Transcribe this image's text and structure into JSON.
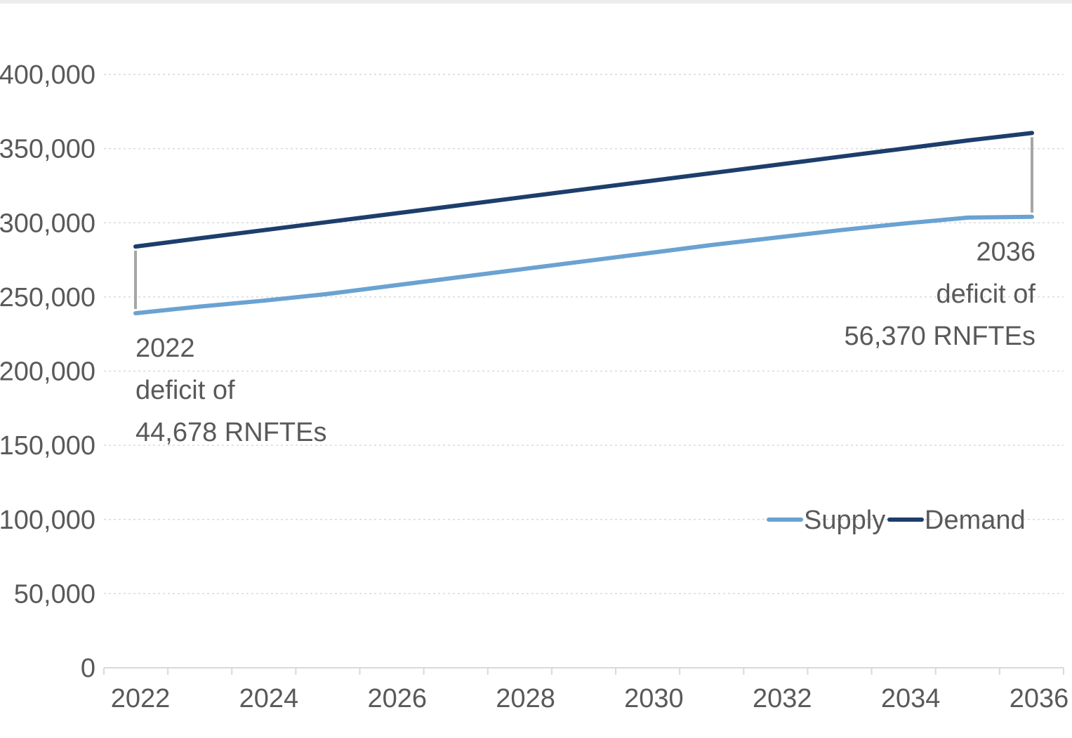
{
  "chart_data": {
    "type": "line",
    "title": "",
    "xlabel": "",
    "ylabel": "",
    "x": [
      2022,
      2023,
      2024,
      2025,
      2026,
      2027,
      2028,
      2029,
      2030,
      2031,
      2032,
      2033,
      2034,
      2035,
      2036
    ],
    "x_tick_labels": [
      "2022",
      "2024",
      "2026",
      "2028",
      "2030",
      "2032",
      "2034",
      "2036"
    ],
    "y_tick_labels": [
      "0",
      "50,000",
      "100,000",
      "150,000",
      "200,000",
      "250,000",
      "300,000",
      "350,000",
      "400,000"
    ],
    "ylim": [
      0,
      400000
    ],
    "grid": "horizontal dotted",
    "legend_position": "bottom-right",
    "series": [
      {
        "name": "Supply",
        "color": "#6aa2d2",
        "values": [
          239000,
          243500,
          247500,
          252000,
          257500,
          263000,
          268500,
          274000,
          279500,
          285000,
          290000,
          295000,
          299500,
          303500,
          304000
        ]
      },
      {
        "name": "Demand",
        "color": "#1d3e6b",
        "values": [
          284000,
          289500,
          295000,
          300500,
          306000,
          311500,
          317000,
          322500,
          328000,
          333500,
          339000,
          344500,
          350000,
          355500,
          360500
        ]
      }
    ],
    "annotations": [
      {
        "x": 2022,
        "lines": [
          "2022",
          "deficit of",
          "44,678 RNFTEs"
        ],
        "align": "start"
      },
      {
        "x": 2036,
        "lines": [
          "2036",
          "deficit of",
          "56,370 RNFTEs"
        ],
        "align": "end"
      }
    ],
    "gap_line_color": "#a6a6a6",
    "axis_color": "#d9d9d9",
    "grid_color": "#d9d9d9"
  }
}
